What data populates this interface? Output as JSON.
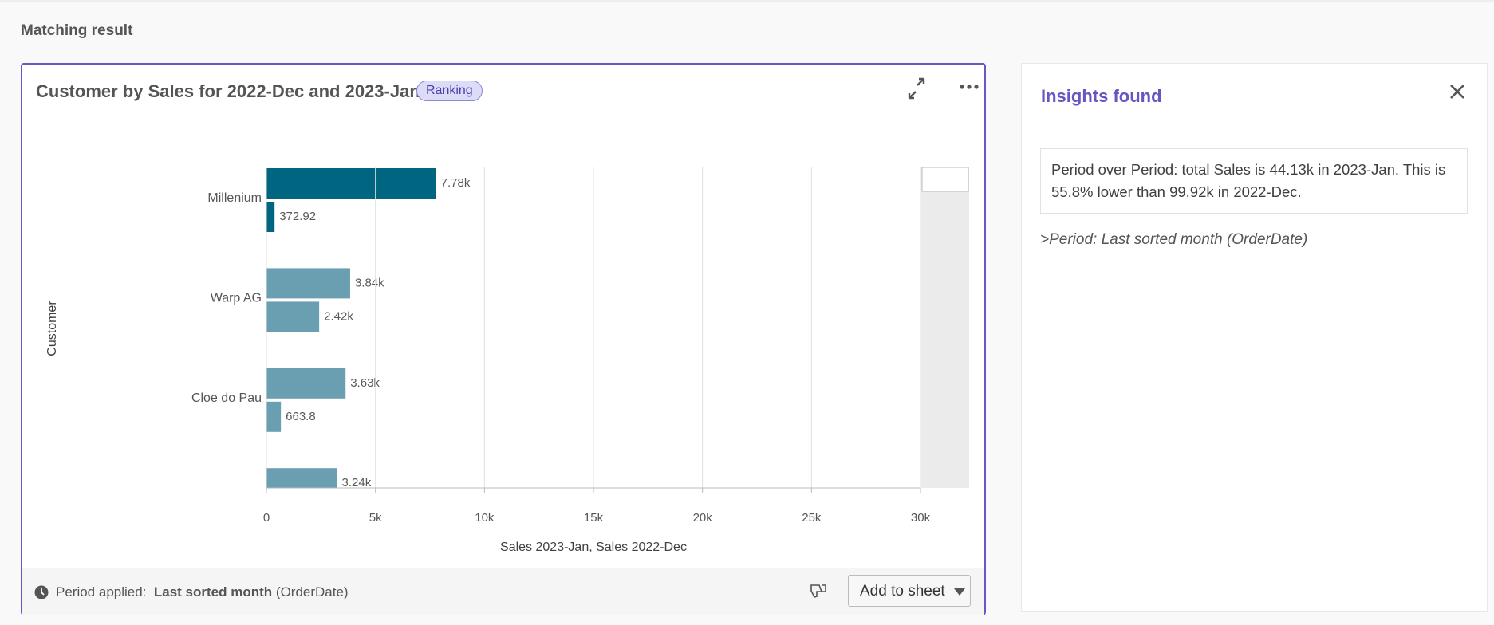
{
  "header": {
    "title": "Matching result"
  },
  "chart_card": {
    "badge": "Ranking",
    "period_label": "Period applied:",
    "period_value": "Last sorted month",
    "period_field": "(OrderDate)",
    "button": "Add to sheet"
  },
  "chart_data": {
    "type": "bar",
    "orientation": "horizontal",
    "title": "Customer by Sales for 2022-Dec and 2023-Jan",
    "x_label": "Sales 2023-Jan, Sales 2022-Dec",
    "y_label": "Customer",
    "categories": [
      "Millenium",
      "Warp AG",
      "Cloe do Pau",
      null
    ],
    "colors": [
      "#006580",
      "#6a9fb1",
      "#6a9fb1",
      "#6a9fb1"
    ],
    "series": [
      {
        "values": [
          7780,
          3840,
          3630,
          3240
        ],
        "value_labels": [
          "7.78k",
          "3.84k",
          "3.63k",
          "3.24k"
        ]
      },
      {
        "values": [
          372.92,
          2420,
          663.8,
          null
        ],
        "value_labels": [
          "372.92",
          "2.42k",
          "663.8",
          null
        ]
      }
    ],
    "xlim": [
      0,
      30000
    ],
    "xticks": [
      0,
      {
        "value": 5000,
        "label": "5k"
      },
      {
        "value": 10000,
        "label": "10k"
      },
      {
        "value": 15000,
        "label": "15k"
      },
      {
        "value": 20000,
        "label": "20k"
      },
      {
        "value": 25000,
        "label": "25k"
      },
      {
        "value": 30000,
        "label": "30k"
      }
    ],
    "grid": true
  },
  "insights": {
    "title": "Insights found",
    "text": "Period over Period: total Sales is 44.13k in 2023-Jan. This is 55.8% lower than 99.92k in 2022-Dec.",
    "note": ">Period: Last sorted month (OrderDate)"
  }
}
